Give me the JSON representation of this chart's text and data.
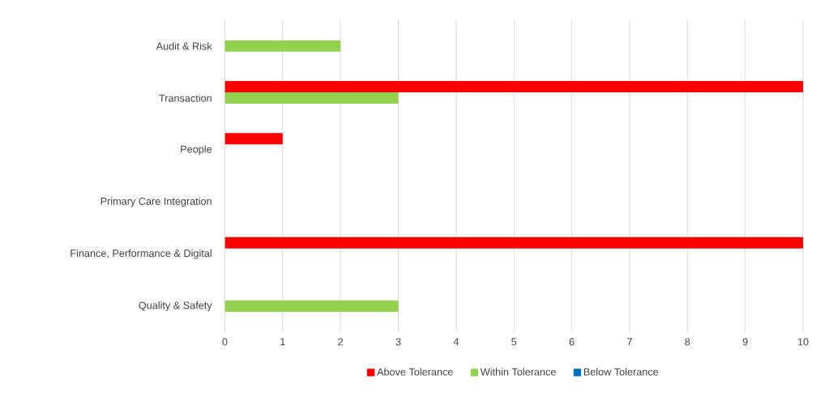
{
  "chart_data": {
    "type": "bar",
    "orientation": "horizontal",
    "categories": [
      "Audit & Risk",
      "Transaction",
      "People",
      "Primary Care Integration",
      "Finance, Performance & Digital",
      "Quality & Safety"
    ],
    "series": [
      {
        "name": "Above Tolerance",
        "color": "#ff0000",
        "values": [
          0,
          10,
          1,
          0,
          10,
          0
        ]
      },
      {
        "name": "Within Tolerance",
        "color": "#92d050",
        "values": [
          2,
          3,
          0,
          0,
          0,
          3
        ]
      },
      {
        "name": "Below Tolerance",
        "color": "#0070c0",
        "values": [
          0,
          0,
          0,
          0,
          0,
          0
        ]
      }
    ],
    "xlim": [
      0,
      10
    ],
    "xticks": [
      0,
      1,
      2,
      3,
      4,
      5,
      6,
      7,
      8,
      9,
      10
    ],
    "grid": "x",
    "legend": "bottom"
  }
}
